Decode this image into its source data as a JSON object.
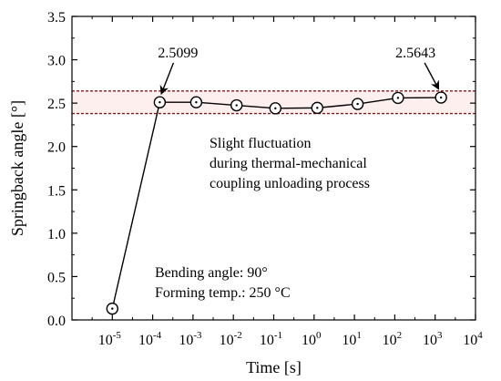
{
  "chart_data": {
    "type": "line",
    "title": "",
    "xlabel": "Time [s]",
    "ylabel": "Springback angle [°]",
    "x_scale": "log",
    "xlim": [
      1e-06,
      10000.0
    ],
    "ylim": [
      0,
      3.5
    ],
    "y_ticks": [
      "0.0",
      "0.5",
      "1.0",
      "1.5",
      "2.0",
      "2.5",
      "3.0",
      "3.5"
    ],
    "x_ticks": [
      {
        "x": 1e-05,
        "base": "10",
        "exp": "-5"
      },
      {
        "x": 0.0001,
        "base": "10",
        "exp": "-4"
      },
      {
        "x": 0.001,
        "base": "10",
        "exp": "-3"
      },
      {
        "x": 0.01,
        "base": "10",
        "exp": "-2"
      },
      {
        "x": 0.1,
        "base": "10",
        "exp": "-1"
      },
      {
        "x": 1.0,
        "base": "10",
        "exp": "0"
      },
      {
        "x": 10.0,
        "base": "10",
        "exp": "1"
      },
      {
        "x": 100.0,
        "base": "10",
        "exp": "2"
      },
      {
        "x": 1000.0,
        "base": "10",
        "exp": "3"
      },
      {
        "x": 10000.0,
        "base": "10",
        "exp": "4"
      }
    ],
    "series": [
      {
        "x": [
          1e-05,
          0.00015,
          0.0012,
          0.012,
          0.11,
          1.2,
          12.0,
          120.0,
          1400.0
        ],
        "y": [
          0.13,
          2.5099,
          2.51,
          2.475,
          2.44,
          2.445,
          2.49,
          2.56,
          2.5643
        ],
        "color": "#000000",
        "marker": "circle-dot"
      }
    ],
    "band": {
      "y": [
        2.38,
        2.64
      ],
      "x": [
        1e-06,
        10000.0
      ],
      "color": "#8b1a1a",
      "fill": "#fde8e8"
    },
    "data_labels": [
      {
        "text": "2.5099",
        "x": 0.00015,
        "y": 2.5099
      },
      {
        "text": "2.5643",
        "x": 1400.0,
        "y": 2.5643
      }
    ],
    "annotations": [
      "Slight fluctuation",
      "during thermal-mechanical",
      "coupling unloading process"
    ],
    "conditions": [
      "Bending angle: 90°",
      "Forming temp.: 250 °C"
    ],
    "grid": false,
    "legend": "none"
  }
}
